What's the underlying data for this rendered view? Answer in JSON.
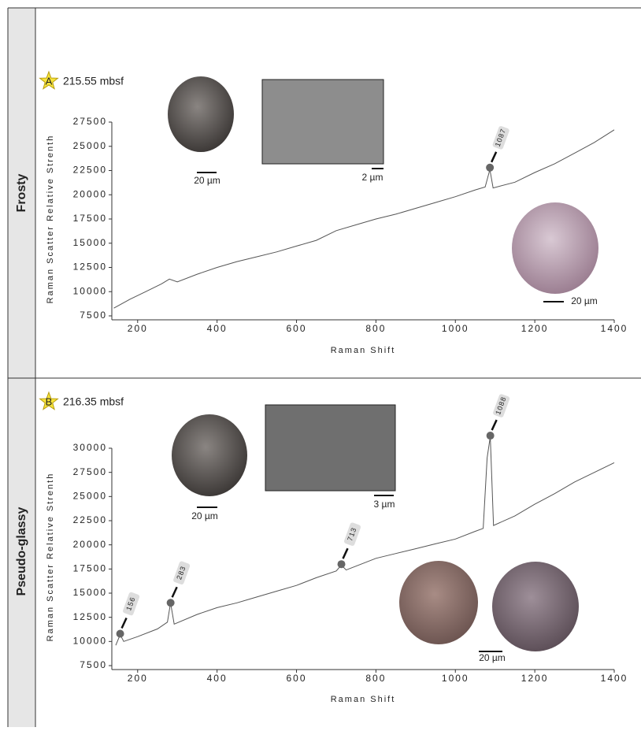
{
  "chart_data": [
    {
      "type": "line",
      "group": "Frosty",
      "panel": "A",
      "title": "215.55 mbsf",
      "ylabel": "Raman Scatter Relative Strenth",
      "xlabel": "Raman Shift",
      "image_labels": [
        "20 µm",
        "2 µm",
        "20 µm"
      ],
      "color": "#555555",
      "x": [
        140,
        180,
        220,
        260,
        280,
        300,
        350,
        400,
        450,
        500,
        550,
        600,
        650,
        700,
        750,
        800,
        850,
        900,
        950,
        1000,
        1050,
        1075,
        1087,
        1095,
        1150,
        1200,
        1250,
        1300,
        1350,
        1400
      ],
      "values": [
        8300,
        9200,
        10000,
        10800,
        11300,
        11000,
        11800,
        12500,
        13100,
        13600,
        14100,
        14700,
        15300,
        16300,
        16900,
        17500,
        18000,
        18600,
        19200,
        19800,
        20500,
        20800,
        22600,
        20700,
        21300,
        22300,
        23200,
        24300,
        25400,
        26700
      ],
      "peaks": [
        {
          "x": 1087,
          "y": 22800
        }
      ],
      "xlim": [
        135,
        1400
      ],
      "xticks": [
        200,
        400,
        600,
        800,
        1000,
        1200,
        1400
      ],
      "ylim": [
        7500,
        27500
      ],
      "yticks": [
        7500,
        10000,
        12500,
        15000,
        17500,
        20000,
        22500,
        25000,
        27500
      ]
    },
    {
      "type": "line",
      "group": "Pseudo-glassy",
      "panel": "B",
      "title": "216.35 mbsf",
      "ylabel": "Raman Scatter Relative Strenth",
      "xlabel": "Raman Shift",
      "image_labels": [
        "20 µm",
        "3 µm",
        "20 µm"
      ],
      "color": "#555555",
      "x": [
        145,
        156,
        165,
        200,
        250,
        275,
        283,
        292,
        350,
        400,
        450,
        500,
        550,
        600,
        650,
        700,
        713,
        725,
        800,
        850,
        900,
        950,
        1000,
        1050,
        1070,
        1080,
        1088,
        1096,
        1150,
        1200,
        1250,
        1300,
        1350,
        1400
      ],
      "values": [
        9600,
        10700,
        10000,
        10500,
        11300,
        12000,
        14000,
        11800,
        12800,
        13500,
        14000,
        14600,
        15200,
        15800,
        16600,
        17300,
        17900,
        17400,
        18600,
        19100,
        19600,
        20100,
        20600,
        21400,
        21700,
        29000,
        31200,
        22000,
        23000,
        24200,
        25300,
        26500,
        27500,
        28500
      ],
      "peaks": [
        {
          "x": 156,
          "y": 10800
        },
        {
          "x": 283,
          "y": 14000
        },
        {
          "x": 713,
          "y": 18000
        },
        {
          "x": 1088,
          "y": 31300
        }
      ],
      "xlim": [
        135,
        1400
      ],
      "xticks": [
        200,
        400,
        600,
        800,
        1000,
        1200,
        1400
      ],
      "ylim": [
        7500,
        30000
      ],
      "yticks": [
        7500,
        10000,
        12500,
        15000,
        17500,
        20000,
        22500,
        25000,
        27500,
        30000
      ]
    }
  ]
}
